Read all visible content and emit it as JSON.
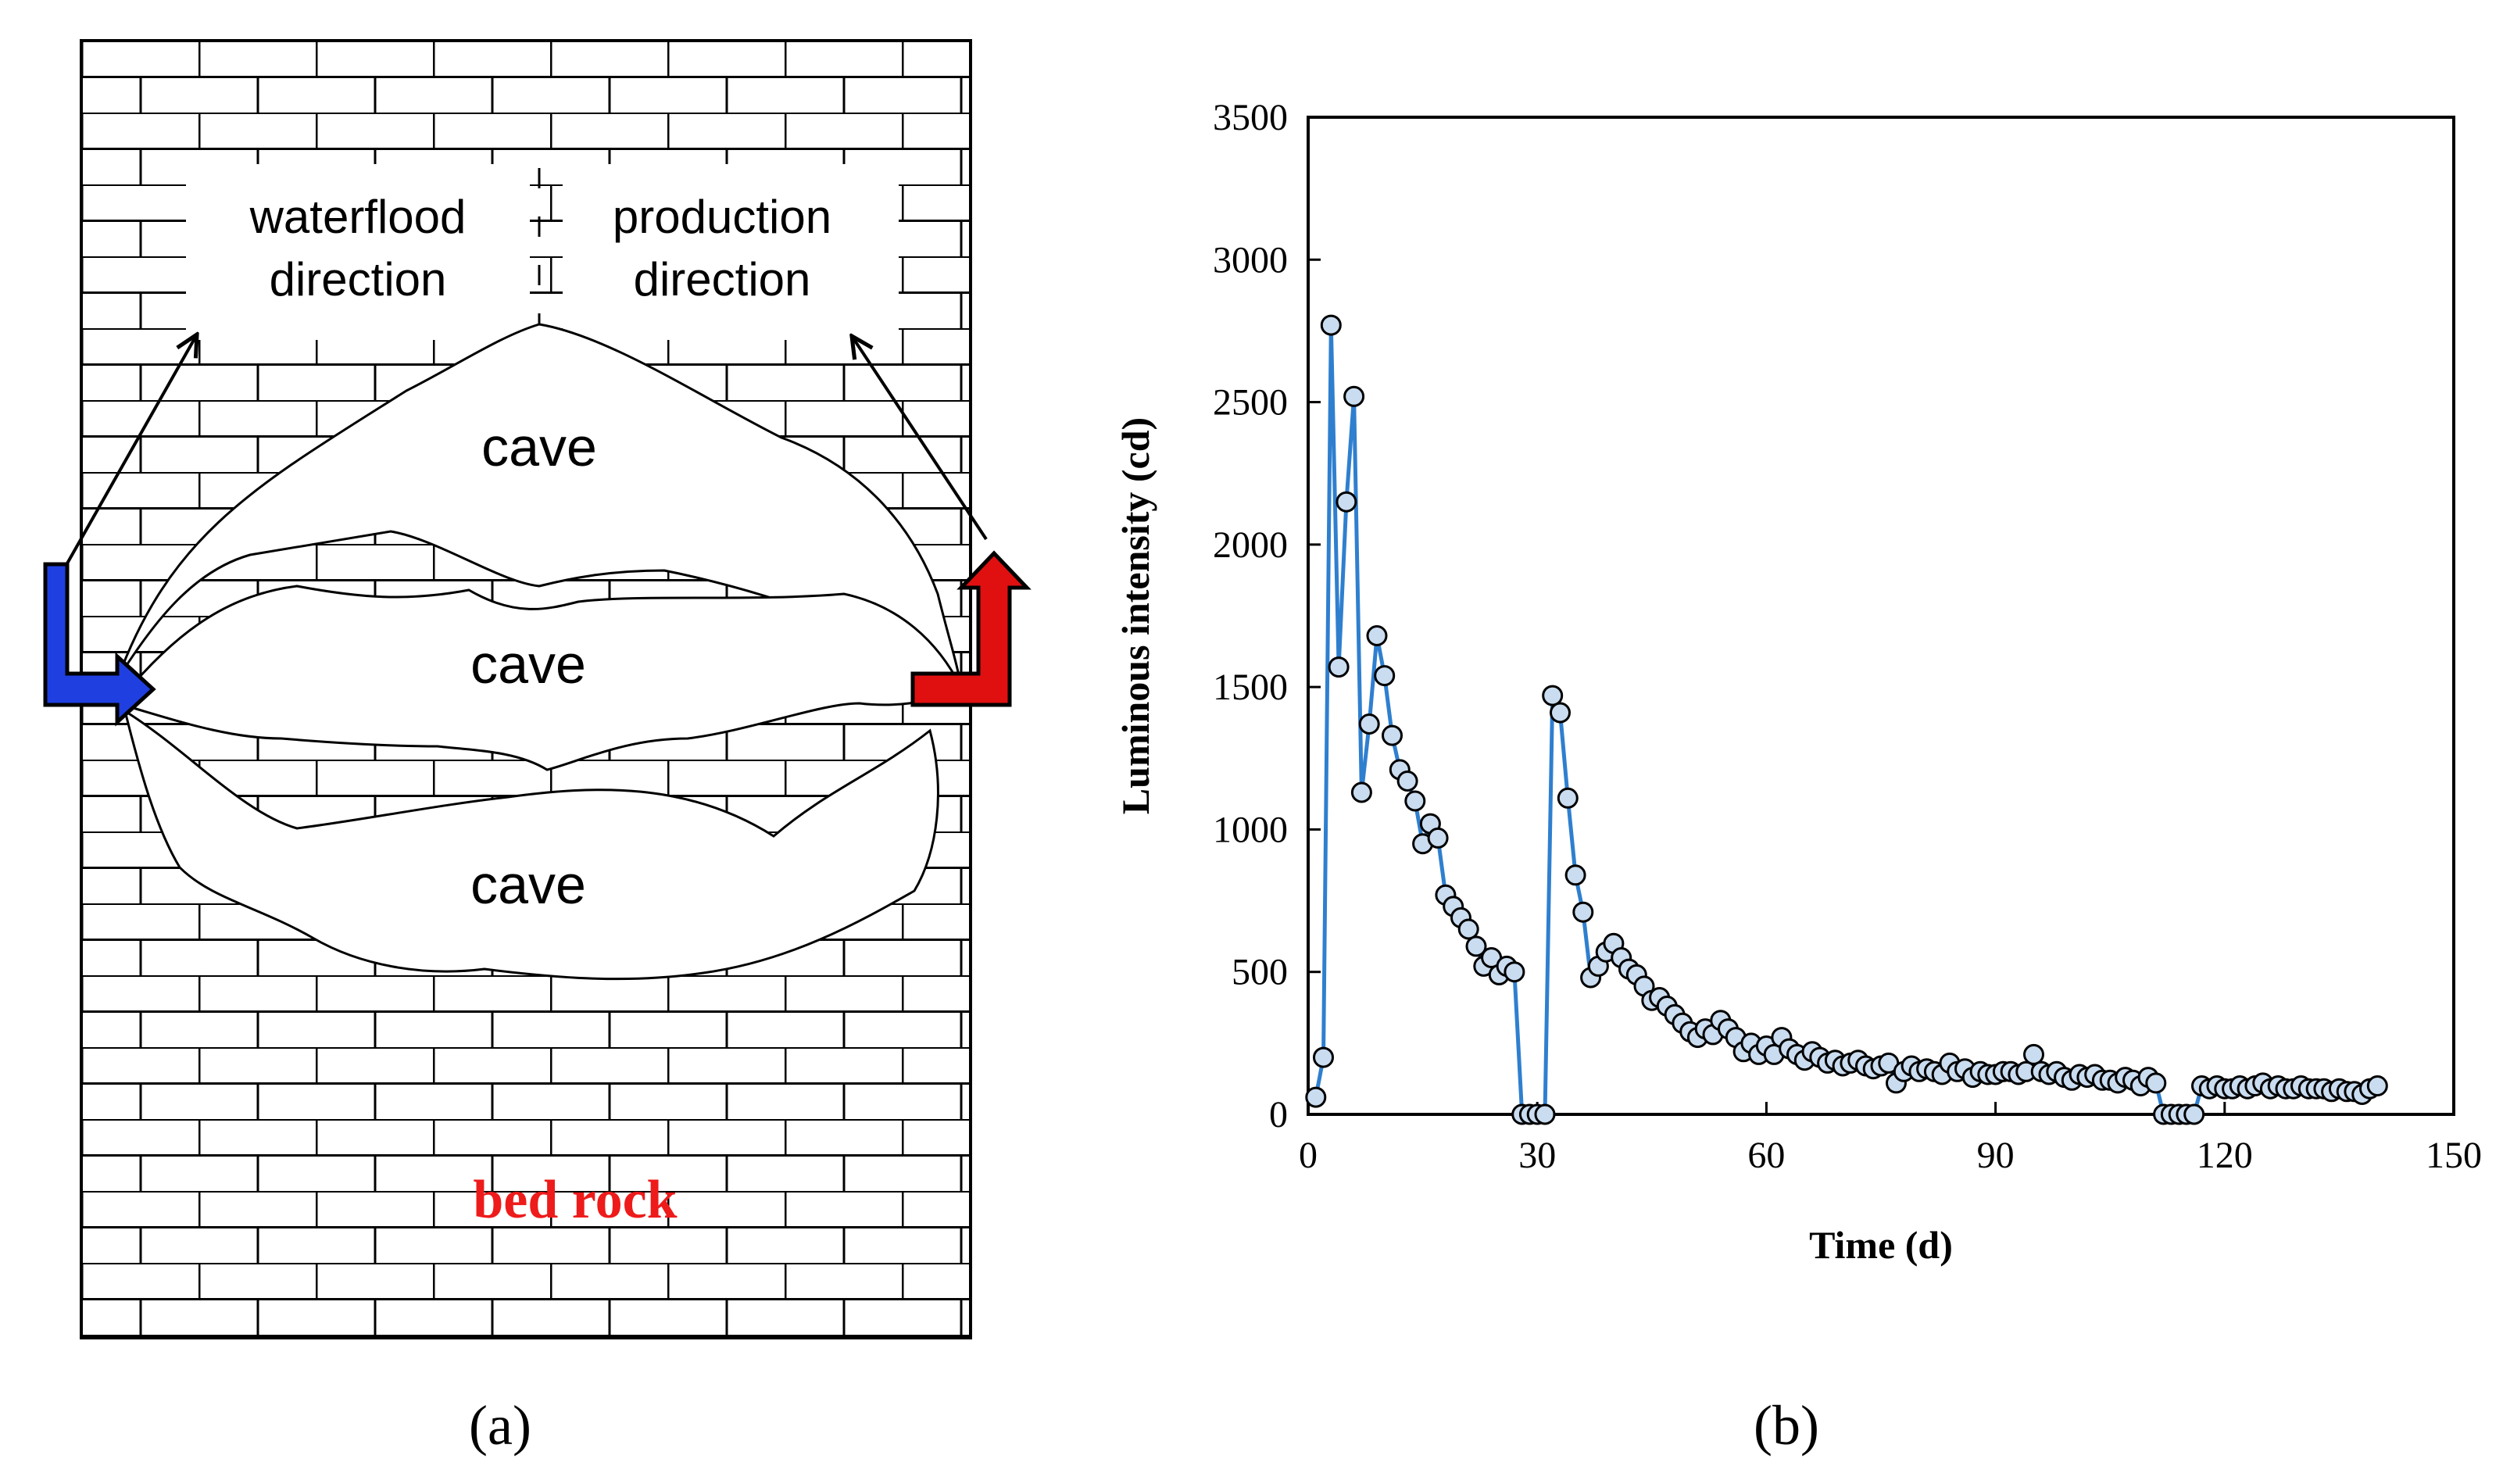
{
  "colors": {
    "injection_arrow": "#1f3fe0",
    "production_arrow": "#e01010",
    "bedrock_label": "#ee1b1b",
    "series_line": "#2f7fcf",
    "marker_fill": "#c9dcf0",
    "ink": "#000000"
  },
  "panel_a": {
    "caption": "(a)",
    "labels": {
      "waterflood": [
        "waterflood",
        "direction"
      ],
      "production": [
        "production",
        "direction"
      ],
      "caves": [
        "cave",
        "cave",
        "cave"
      ],
      "bedrock": "bed rock"
    }
  },
  "panel_b": {
    "caption": "(b)"
  },
  "chart_data": {
    "type": "scatter",
    "title": "",
    "xlabel": "Time (d)",
    "ylabel": "Luminous intensity (cd)",
    "xlim": [
      0,
      150
    ],
    "ylim": [
      0,
      3500
    ],
    "xticks": [
      0,
      30,
      60,
      90,
      120,
      150
    ],
    "yticks": [
      0,
      500,
      1000,
      1500,
      2000,
      2500,
      3000,
      3500
    ],
    "grid": false,
    "series": [
      {
        "name": "Luminous intensity",
        "style": "line+markers",
        "x": [
          1,
          2,
          3,
          4,
          5,
          6,
          7,
          8,
          9,
          10,
          11,
          12,
          13,
          14,
          15,
          16,
          17,
          18,
          19,
          20,
          21,
          22,
          23,
          24,
          25,
          26,
          27,
          28,
          29,
          30,
          31,
          32,
          33,
          34,
          35,
          36,
          37,
          38,
          39,
          40,
          41,
          42,
          43,
          44,
          45,
          46,
          47,
          48,
          49,
          50,
          51,
          52,
          53,
          54,
          55,
          56,
          57,
          58,
          59,
          60,
          61,
          62,
          63,
          64,
          65,
          66,
          67,
          68,
          69,
          70,
          71,
          72,
          73,
          74,
          75,
          76,
          77,
          78,
          79,
          80,
          81,
          82,
          83,
          84,
          85,
          86,
          87,
          88,
          89,
          90,
          91,
          92,
          93,
          94,
          95,
          96,
          97,
          98,
          99,
          100,
          101,
          102,
          103,
          104,
          105,
          106,
          107,
          108,
          109,
          110,
          111,
          112,
          113,
          114,
          115,
          116,
          117,
          118,
          119,
          120,
          121,
          122,
          123,
          124,
          125,
          126,
          127,
          128,
          129,
          130,
          131,
          132,
          133,
          134,
          135,
          136,
          137,
          138,
          139,
          140
        ],
        "y": [
          60,
          200,
          2770,
          1570,
          2150,
          2520,
          1130,
          1370,
          1680,
          1540,
          1330,
          1210,
          1170,
          1100,
          950,
          1020,
          970,
          770,
          730,
          690,
          650,
          590,
          520,
          550,
          490,
          520,
          500,
          0,
          0,
          0,
          0,
          1470,
          1410,
          1110,
          840,
          710,
          480,
          520,
          570,
          600,
          550,
          510,
          490,
          450,
          400,
          410,
          380,
          350,
          320,
          290,
          270,
          300,
          280,
          330,
          300,
          270,
          220,
          250,
          210,
          240,
          210,
          270,
          230,
          210,
          190,
          220,
          200,
          180,
          190,
          170,
          180,
          190,
          170,
          160,
          170,
          180,
          110,
          150,
          170,
          150,
          160,
          150,
          140,
          180,
          150,
          160,
          130,
          150,
          140,
          140,
          150,
          150,
          140,
          150,
          210,
          150,
          140,
          150,
          130,
          120,
          140,
          130,
          140,
          120,
          120,
          110,
          130,
          120,
          100,
          130,
          110,
          0,
          0,
          0,
          0,
          0,
          100,
          90,
          100,
          90,
          90,
          100,
          90,
          100,
          110,
          90,
          100,
          90,
          90,
          100,
          90,
          90,
          90,
          80,
          90,
          80,
          80,
          70,
          90,
          100
        ]
      }
    ]
  }
}
